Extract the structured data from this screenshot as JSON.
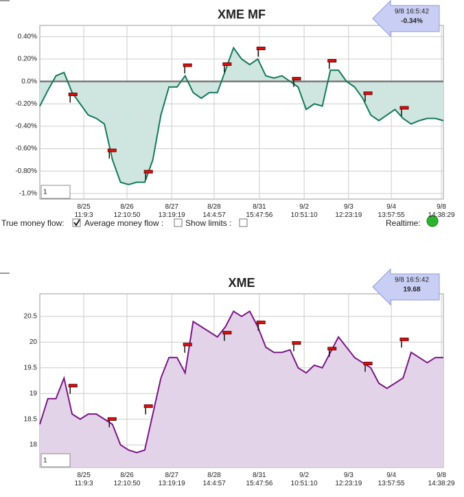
{
  "chart_data": [
    {
      "type": "line",
      "title": "XME MF",
      "color": "#117a55",
      "fill": "#cfe5df",
      "zero_line": true,
      "grid": true,
      "badge": {
        "time": "9/8 16:5:42",
        "value": "-0.34%"
      },
      "input": "1",
      "xlim": [
        0,
        100
      ],
      "ylim": [
        -1.05,
        0.5
      ],
      "yticks": [
        {
          "value": 0.4,
          "label": "0.40%"
        },
        {
          "value": 0.2,
          "label": "0.20%"
        },
        {
          "value": 0,
          "label": "0.0%"
        },
        {
          "value": -0.2,
          "label": "-0.20%"
        },
        {
          "value": -0.4,
          "label": "-0.40%"
        },
        {
          "value": -0.6,
          "label": "-0.60%"
        },
        {
          "value": -0.8,
          "label": "-0.80%"
        },
        {
          "value": -1.0,
          "label": "-1.0%"
        }
      ],
      "xticks": [
        {
          "value": 10.9,
          "label": "8/25 11:9:3"
        },
        {
          "value": 21.6,
          "label": "8/26 12:10:50"
        },
        {
          "value": 32.7,
          "label": "8/27 13:19:19"
        },
        {
          "value": 43.2,
          "label": "8/28 14:4:57"
        },
        {
          "value": 54.4,
          "label": "8/31 15:47:56"
        },
        {
          "value": 65.5,
          "label": "9/2 10:51:10"
        },
        {
          "value": 76.5,
          "label": "9/3 12:23:19"
        },
        {
          "value": 87.1,
          "label": "9/4 13:57:55"
        },
        {
          "value": 99.5,
          "label": "9/8 14:38:29"
        }
      ],
      "x": [
        0,
        2,
        4,
        6,
        8,
        10,
        12,
        14,
        16,
        18,
        20,
        22,
        24,
        26,
        28,
        30,
        32,
        34,
        36,
        38,
        40,
        42,
        44,
        46,
        48,
        50,
        52,
        54,
        56,
        58,
        60,
        62,
        64,
        66,
        68,
        70,
        72,
        74,
        76,
        78,
        80,
        82,
        84,
        86,
        88,
        90,
        92,
        94,
        96,
        98,
        100
      ],
      "values": [
        -0.22,
        -0.08,
        0.05,
        0.08,
        -0.1,
        -0.2,
        -0.3,
        -0.33,
        -0.38,
        -0.7,
        -0.9,
        -0.92,
        -0.9,
        -0.9,
        -0.7,
        -0.3,
        -0.05,
        -0.05,
        0.05,
        -0.1,
        -0.15,
        -0.1,
        -0.1,
        0.1,
        0.3,
        0.2,
        0.15,
        0.2,
        0.05,
        0.03,
        0.05,
        0.0,
        -0.05,
        -0.25,
        -0.2,
        -0.22,
        0.1,
        0.1,
        0.0,
        -0.05,
        -0.15,
        -0.3,
        -0.35,
        -0.3,
        -0.25,
        -0.33,
        -0.38,
        -0.35,
        -0.33,
        -0.33,
        -0.35
      ],
      "marker_x": [
        8.2,
        17.9,
        26.9,
        36.6,
        46.4,
        54.8,
        63.6,
        72.4,
        81.3,
        90.3
      ],
      "marker_values": [
        -0.14,
        -0.64,
        -0.83,
        0.12,
        0.13,
        0.27,
        0.0,
        0.16,
        -0.13,
        -0.26
      ]
    },
    {
      "type": "line",
      "title": "XME",
      "color": "#7a1585",
      "fill": "#e3d3e8",
      "zero_line": false,
      "grid": true,
      "badge": {
        "time": "9/8 16:5:42",
        "value": "19.68"
      },
      "input": "1",
      "xlim": [
        0,
        100
      ],
      "ylim": [
        17.56,
        20.94
      ],
      "yticks": [
        20.5,
        20,
        19.5,
        19,
        18.5,
        18
      ],
      "xticks": [
        {
          "value": 10.9,
          "label": "8/25 11:9:3"
        },
        {
          "value": 21.6,
          "label": "8/26 12:10:50"
        },
        {
          "value": 32.7,
          "label": "8/27 13:19:19"
        },
        {
          "value": 43.2,
          "label": "8/28 14:4:57"
        },
        {
          "value": 54.4,
          "label": "8/31 15:47:56"
        },
        {
          "value": 65.5,
          "label": "9/2 10:51:10"
        },
        {
          "value": 76.5,
          "label": "9/3 12:23:19"
        },
        {
          "value": 87.1,
          "label": "9/4 13:57:55"
        },
        {
          "value": 99.5,
          "label": "9/8 14:38:29"
        }
      ],
      "x": [
        0,
        2,
        4,
        6,
        8,
        10,
        12,
        14,
        16,
        18,
        20,
        22,
        24,
        26,
        28,
        30,
        32,
        34,
        36,
        38,
        40,
        42,
        44,
        46,
        48,
        50,
        52,
        54,
        56,
        58,
        60,
        62,
        64,
        66,
        68,
        70,
        72,
        74,
        76,
        78,
        80,
        82,
        84,
        86,
        88,
        90,
        92,
        94,
        96,
        98,
        100
      ],
      "values": [
        18.4,
        18.9,
        18.9,
        19.3,
        18.6,
        18.5,
        18.6,
        18.6,
        18.5,
        18.4,
        18.0,
        17.9,
        17.85,
        17.9,
        18.6,
        19.3,
        19.7,
        19.7,
        19.4,
        20.4,
        20.3,
        20.2,
        20.1,
        20.3,
        20.6,
        20.5,
        20.6,
        20.3,
        19.9,
        19.8,
        19.8,
        19.85,
        19.5,
        19.4,
        19.55,
        19.5,
        19.8,
        20.1,
        19.9,
        19.7,
        19.6,
        19.5,
        19.2,
        19.1,
        19.2,
        19.3,
        19.8,
        19.7,
        19.6,
        19.7,
        19.7
      ],
      "marker_x": [
        8.2,
        17.9,
        26.9,
        36.6,
        46.4,
        54.8,
        63.6,
        72.4,
        81.3,
        90.3
      ],
      "marker_values": [
        19.1,
        18.45,
        18.7,
        19.9,
        20.13,
        20.33,
        19.93,
        19.82,
        19.53,
        20.0
      ]
    }
  ],
  "controls": {
    "true_money_flow": {
      "label": "True money flow:",
      "checked": true
    },
    "average_money_flow": {
      "label": "Average money flow :",
      "checked": false
    },
    "show_limits": {
      "label": "Show limits :",
      "checked": false
    },
    "realtime": {
      "label": "Realtime:"
    }
  }
}
